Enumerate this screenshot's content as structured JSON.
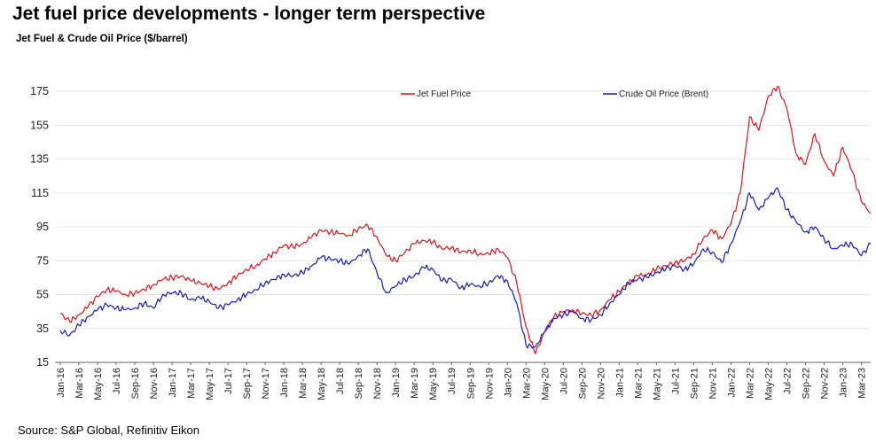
{
  "title": "Jet fuel price developments - longer term perspective",
  "source": "Source: S&P Global, Refinitiv Eikon",
  "chart_data": {
    "type": "line",
    "title": "Jet fuel price developments - longer term perspective",
    "subtitle": "Jet Fuel & Crude Oil Price ($/barrel)",
    "xlabel": "",
    "ylabel": "",
    "ylim": [
      15,
      185
    ],
    "yticks": [
      15,
      35,
      55,
      75,
      95,
      115,
      135,
      155,
      175
    ],
    "grid": "horizontal",
    "legend": "top",
    "xticks": [
      "Jan-16",
      "Mar-16",
      "May-16",
      "Jul-16",
      "Sep-16",
      "Nov-16",
      "Jan-17",
      "Mar-17",
      "May-17",
      "Jul-17",
      "Sep-17",
      "Nov-17",
      "Jan-18",
      "Mar-18",
      "May-18",
      "Jul-18",
      "Sep-18",
      "Nov-18",
      "Jan-19",
      "Mar-19",
      "May-19",
      "Jul-19",
      "Sep-19",
      "Nov-19",
      "Jan-20",
      "Mar-20",
      "May-20",
      "Jul-20",
      "Sep-20",
      "Nov-20",
      "Jan-21",
      "Mar-21",
      "May-21",
      "Jul-21",
      "Sep-21",
      "Nov-21",
      "Jan-22",
      "Mar-22",
      "May-22",
      "Jul-22",
      "Sep-22",
      "Nov-22",
      "Jan-23",
      "Mar-23"
    ],
    "x": [
      "Jan-16",
      "Feb-16",
      "Mar-16",
      "Apr-16",
      "May-16",
      "Jun-16",
      "Jul-16",
      "Aug-16",
      "Sep-16",
      "Oct-16",
      "Nov-16",
      "Dec-16",
      "Jan-17",
      "Feb-17",
      "Mar-17",
      "Apr-17",
      "May-17",
      "Jun-17",
      "Jul-17",
      "Aug-17",
      "Sep-17",
      "Oct-17",
      "Nov-17",
      "Dec-17",
      "Jan-18",
      "Feb-18",
      "Mar-18",
      "Apr-18",
      "May-18",
      "Jun-18",
      "Jul-18",
      "Aug-18",
      "Sep-18",
      "Oct-18",
      "Nov-18",
      "Dec-18",
      "Jan-19",
      "Feb-19",
      "Mar-19",
      "Apr-19",
      "May-19",
      "Jun-19",
      "Jul-19",
      "Aug-19",
      "Sep-19",
      "Oct-19",
      "Nov-19",
      "Dec-19",
      "Jan-20",
      "Feb-20",
      "Mar-20",
      "Apr-20",
      "May-20",
      "Jun-20",
      "Jul-20",
      "Aug-20",
      "Sep-20",
      "Oct-20",
      "Nov-20",
      "Dec-20",
      "Jan-21",
      "Feb-21",
      "Mar-21",
      "Apr-21",
      "May-21",
      "Jun-21",
      "Jul-21",
      "Aug-21",
      "Sep-21",
      "Oct-21",
      "Nov-21",
      "Dec-21",
      "Jan-22",
      "Feb-22",
      "Mar-22",
      "Apr-22",
      "May-22",
      "Jun-22",
      "Jul-22",
      "Aug-22",
      "Sep-22",
      "Oct-22",
      "Nov-22",
      "Dec-22",
      "Jan-23",
      "Feb-23",
      "Mar-23",
      "Apr-23"
    ],
    "series": [
      {
        "name": "Jet Fuel Price",
        "color": "#e8101a",
        "values": [
          44,
          39,
          43,
          48,
          54,
          58,
          57,
          55,
          56,
          58,
          61,
          64,
          65,
          66,
          63,
          62,
          60,
          58,
          62,
          66,
          70,
          72,
          76,
          80,
          84,
          83,
          85,
          89,
          93,
          92,
          91,
          90,
          94,
          96,
          89,
          78,
          75,
          80,
          85,
          87,
          86,
          82,
          83,
          80,
          81,
          79,
          79,
          82,
          77,
          62,
          36,
          20,
          33,
          42,
          45,
          46,
          44,
          43,
          46,
          52,
          57,
          62,
          66,
          67,
          70,
          72,
          74,
          75,
          79,
          88,
          93,
          88,
          97,
          115,
          160,
          152,
          172,
          178,
          165,
          138,
          132,
          150,
          134,
          125,
          142,
          128,
          110,
          103
        ]
      },
      {
        "name": "Crude Oil Price (Brent)",
        "color": "#1519c6",
        "values": [
          34,
          31,
          37,
          42,
          46,
          49,
          47,
          46,
          47,
          50,
          47,
          55,
          56,
          56,
          52,
          53,
          51,
          47,
          49,
          52,
          55,
          58,
          62,
          64,
          67,
          66,
          68,
          72,
          77,
          76,
          75,
          73,
          78,
          82,
          68,
          56,
          60,
          64,
          66,
          71,
          70,
          63,
          64,
          59,
          61,
          60,
          62,
          66,
          63,
          50,
          25,
          24,
          33,
          41,
          43,
          45,
          41,
          40,
          43,
          50,
          55,
          62,
          64,
          65,
          68,
          70,
          72,
          70,
          73,
          82,
          80,
          74,
          85,
          98,
          115,
          105,
          112,
          118,
          105,
          98,
          92,
          95,
          88,
          82,
          84,
          85,
          78,
          85
        ]
      }
    ]
  },
  "colors": {
    "grid": "#e6e6e6",
    "axis": "#666666"
  }
}
